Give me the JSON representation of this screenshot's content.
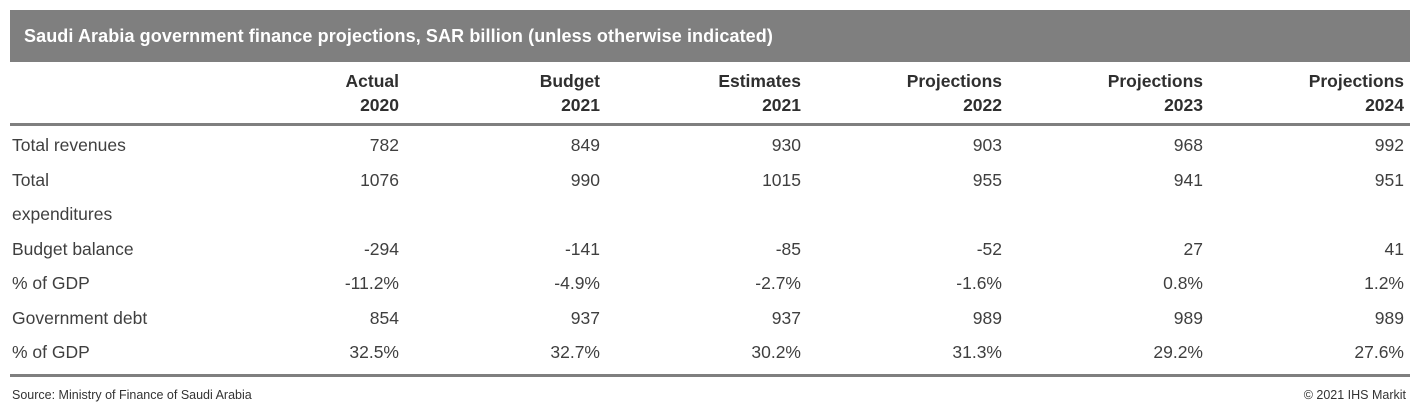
{
  "title": "Saudi Arabia government finance projections, SAR billion (unless otherwise indicated)",
  "colors": {
    "title_bar_bg": "#7f7f7f",
    "title_text": "#ffffff",
    "header_text": "#2f2f2f",
    "body_text": "#3f3f3f",
    "rule_color": "#7f7f7f",
    "background": "#ffffff"
  },
  "chart_data": {
    "type": "table",
    "title": "Saudi Arabia government finance projections, SAR billion (unless otherwise indicated)",
    "columns": [
      {
        "label": "Actual",
        "year": "2020"
      },
      {
        "label": "Budget",
        "year": "2021"
      },
      {
        "label": "Estimates",
        "year": "2021"
      },
      {
        "label": "Projections",
        "year": "2022"
      },
      {
        "label": "Projections",
        "year": "2023"
      },
      {
        "label": "Projections",
        "year": "2024"
      }
    ],
    "rows": [
      {
        "label": "Total revenues",
        "values": [
          "782",
          "849",
          "930",
          "903",
          "968",
          "992"
        ]
      },
      {
        "label": "Total\nexpenditures",
        "values": [
          "1076",
          "990",
          "1015",
          "955",
          "941",
          "951"
        ]
      },
      {
        "label": "Budget balance",
        "values": [
          "-294",
          "-141",
          "-85",
          "-52",
          "27",
          "41"
        ]
      },
      {
        "label": "% of GDP",
        "values": [
          "-11.2%",
          "-4.9%",
          "-2.7%",
          "-1.6%",
          "0.8%",
          "1.2%"
        ]
      },
      {
        "label": "Government debt",
        "values": [
          "854",
          "937",
          "937",
          "989",
          "989",
          "989"
        ]
      },
      {
        "label": "% of GDP",
        "values": [
          "32.5%",
          "32.7%",
          "30.2%",
          "31.3%",
          "29.2%",
          "27.6%"
        ]
      }
    ]
  },
  "footer": {
    "source": "Source: Ministry of Finance of Saudi Arabia",
    "copyright": "© 2021 IHS Markit"
  }
}
